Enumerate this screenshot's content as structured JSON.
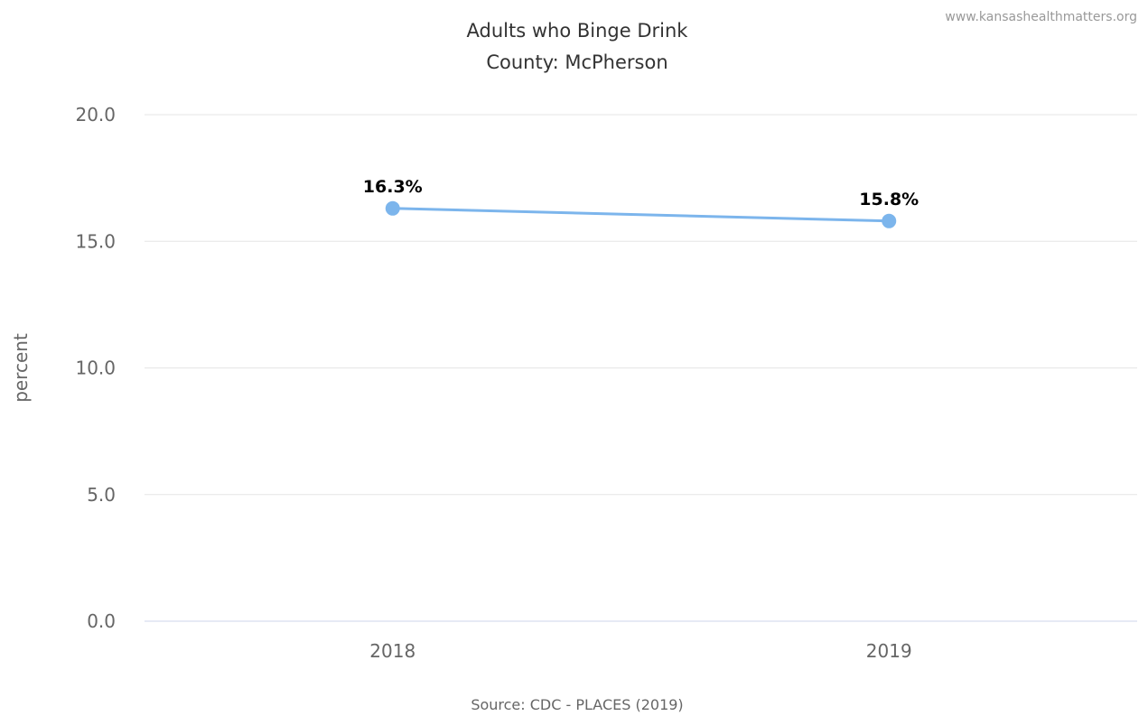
{
  "credit": "www.kansashealthmatters.org",
  "chart_data": {
    "type": "line",
    "title": "Adults who Binge Drink",
    "subtitle": "County: McPherson",
    "ylabel": "percent",
    "xlabel": "",
    "categories": [
      "2018",
      "2019"
    ],
    "series": [
      {
        "values": [
          16.3,
          15.8
        ],
        "data_labels": [
          "16.3%",
          "15.8%"
        ],
        "color": "#7cb5ec"
      }
    ],
    "ylim": [
      0,
      20
    ],
    "yticks": [
      0,
      5,
      10,
      15,
      20
    ],
    "ytick_labels": [
      "0.0",
      "5.0",
      "10.0",
      "15.0",
      "20.0"
    ],
    "grid": true,
    "legend": "none",
    "source": "Source: CDC - PLACES (2019)"
  }
}
